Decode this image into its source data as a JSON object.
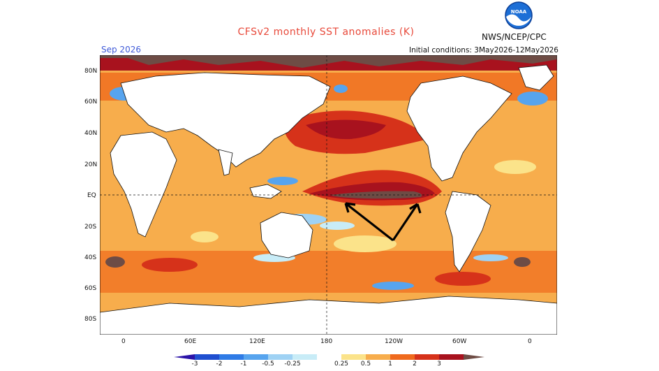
{
  "header": {
    "title": "CFSv2 monthly SST anomalies (K)",
    "period": "Sep 2026",
    "initial_conditions": "Initial conditions: 3May2026-12May2026",
    "organization": "NWS/NCEP/CPC",
    "logo_text": "NOAA"
  },
  "axes": {
    "lat_labels": [
      "80N",
      "60N",
      "40N",
      "20N",
      "EQ",
      "20S",
      "40S",
      "60S",
      "80S"
    ],
    "lon_labels": [
      "0",
      "60E",
      "120E",
      "180",
      "120W",
      "60W",
      "0"
    ]
  },
  "colorbar": {
    "labels": [
      "-3",
      "-2",
      "-1",
      "-0.5",
      "-0.25",
      "0.25",
      "0.5",
      "1",
      "2",
      "3"
    ],
    "colors": [
      "#2b13a8",
      "#1f4fd0",
      "#2f7be6",
      "#57a4ee",
      "#9fd2f4",
      "#c8ecf7",
      "#ffffff",
      "#fbe38a",
      "#f7ad4c",
      "#ef6a1d",
      "#d6321a",
      "#a8121e",
      "#6e4c45"
    ]
  },
  "colors": {
    "land": "#ffffff",
    "coast": "#111111",
    "arrow": "#000000"
  }
}
